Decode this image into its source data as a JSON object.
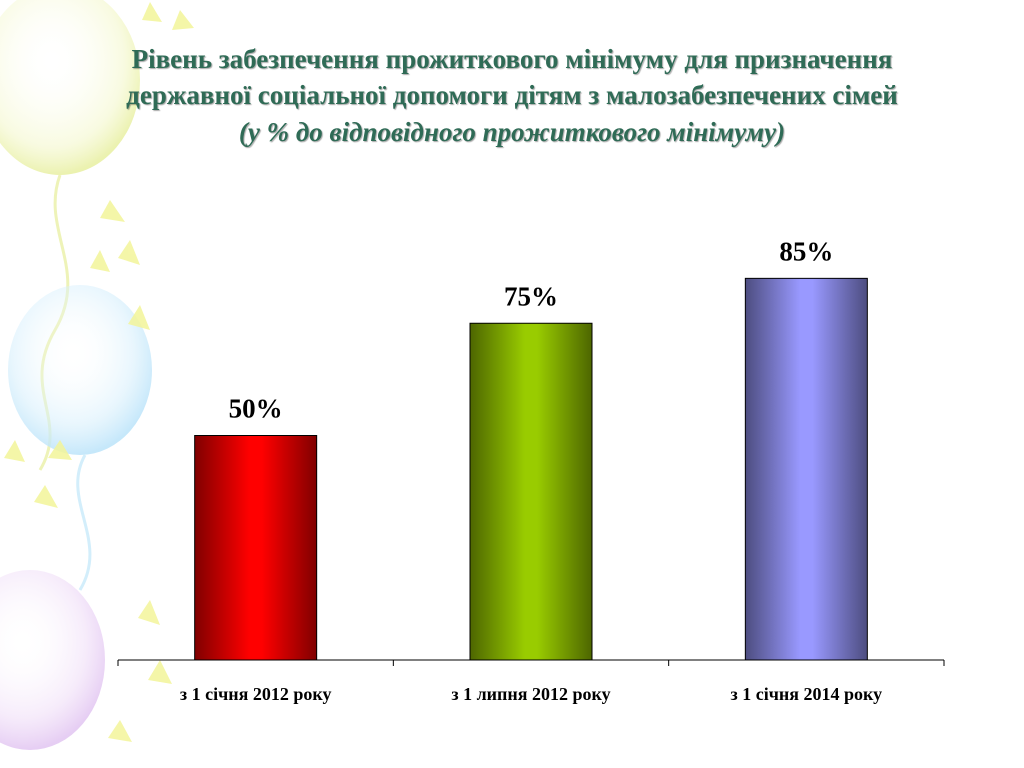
{
  "slide": {
    "title_line_1": "Рівень забезпечення прожиткового мінімуму для призначення",
    "title_line_2": "державної соціальної допомоги дітям з малозабезпечених сімей",
    "subtitle": "(у % до відповідного прожиткового мінімуму)"
  },
  "chart_data": {
    "type": "bar",
    "categories": [
      "з 1 січня 2012 року",
      "з 1 липня 2012 року",
      "з 1 січня 2014 року"
    ],
    "values": [
      50,
      75,
      85
    ],
    "data_labels": [
      "50%",
      "75%",
      "85%"
    ],
    "bar_colors": [
      "#ff0000",
      "#99cc00",
      "#9999ff"
    ],
    "title": "Рівень забезпечення прожиткового мінімуму для призначення державної соціальної допомоги дітям з малозабезпечених сімей",
    "subtitle": "(у % до відповідного прожиткового мінімуму)",
    "xlabel": "",
    "ylabel": "",
    "ylim": [
      0,
      100
    ],
    "grid": false,
    "legend": "none"
  },
  "colors": {
    "title": "#2f6b56",
    "axis": "#000000"
  }
}
